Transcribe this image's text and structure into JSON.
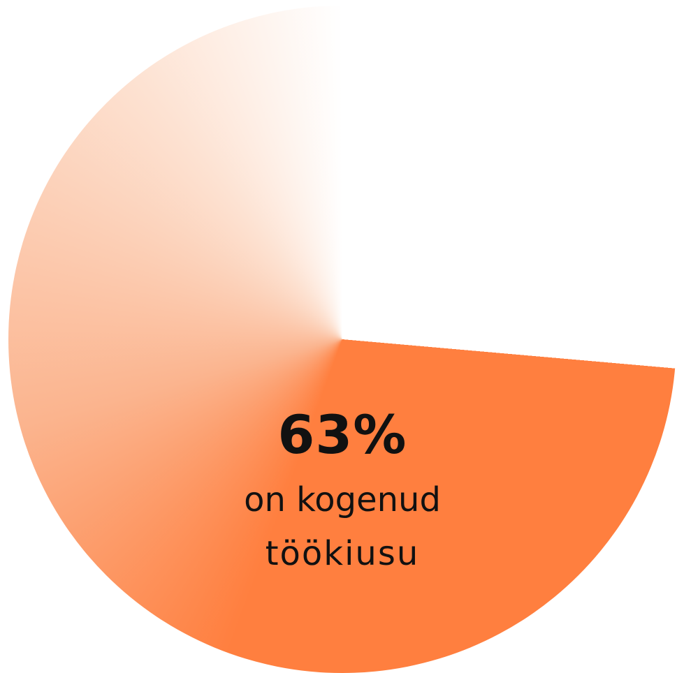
{
  "chart_data": {
    "type": "pie",
    "values": [
      63
    ],
    "value_labels": [
      "63%"
    ],
    "text": [
      "on kogenud",
      "töökiusu"
    ],
    "color": "#ff7f3f"
  }
}
